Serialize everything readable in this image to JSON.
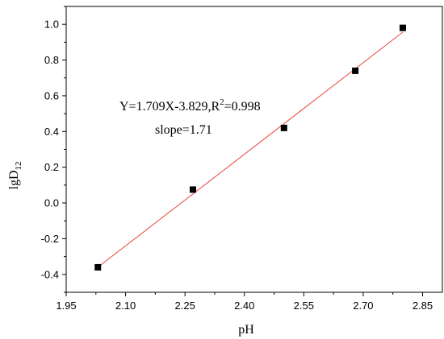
{
  "chart_data": {
    "type": "scatter",
    "xlabel": "pH",
    "ylabel_main": "lgD",
    "ylabel_sub": "12",
    "xlim": [
      1.95,
      2.9
    ],
    "ylim": [
      -0.5,
      1.1
    ],
    "x_ticks": [
      "1.95",
      "2.10",
      "2.25",
      "2.40",
      "2.55",
      "2.70",
      "2.85"
    ],
    "y_ticks": [
      "-0.4",
      "-0.2",
      "0.0",
      "0.2",
      "0.4",
      "0.6",
      "0.8",
      "1.0"
    ],
    "points": [
      {
        "x": 2.03,
        "y": -0.36
      },
      {
        "x": 2.27,
        "y": 0.075
      },
      {
        "x": 2.5,
        "y": 0.42
      },
      {
        "x": 2.68,
        "y": 0.74
      },
      {
        "x": 2.8,
        "y": 0.98
      }
    ],
    "fit": {
      "slope": 1.709,
      "intercept": -3.829
    },
    "fit_range": [
      2.03,
      2.8
    ],
    "fit_color": "#e8453c",
    "marker_color": "#000000",
    "annotations": {
      "equation_main": "Y=1.709X-3.829,R",
      "equation_sup": "2",
      "equation_tail": "=0.998",
      "slope_text": "slope=1.71"
    },
    "grid": false
  }
}
